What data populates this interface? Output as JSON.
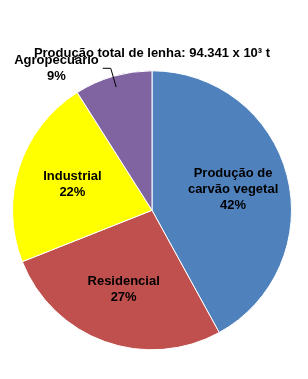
{
  "chart_data": {
    "type": "pie",
    "title": "Produção total de lenha: 94.341 x 10³ t",
    "categories": [
      "Produção de carvão vegetal",
      "Residencial",
      "Industrial",
      "Agropecuário"
    ],
    "values": [
      42,
      27,
      22,
      9
    ],
    "value_labels": [
      "42%",
      "27%",
      "22%",
      "9%"
    ],
    "colors": [
      "#4f81bd",
      "#c0504d",
      "#ffff00",
      "#8064a2"
    ],
    "data_labels": true
  }
}
